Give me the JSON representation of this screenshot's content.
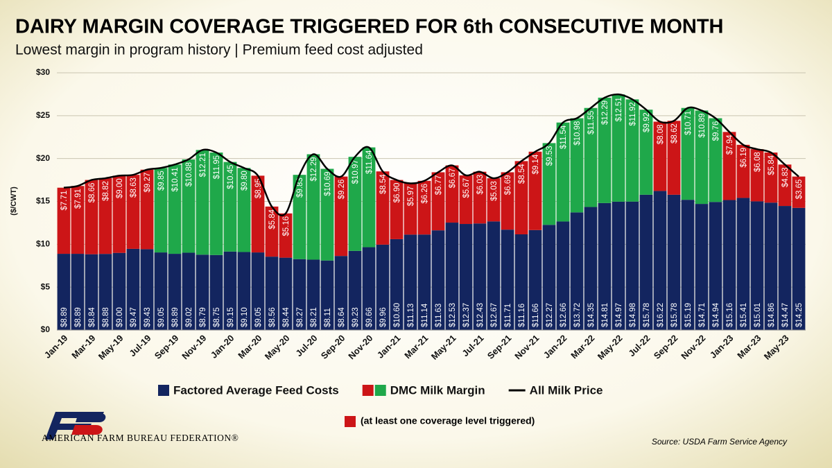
{
  "chart_data": {
    "type": "stacked_bar_line",
    "title": "DAIRY MARGIN COVERAGE TRIGGERED FOR 6th CONSECUTIVE MONTH",
    "subtitle": "Lowest margin in program history | Premium feed cost adjusted",
    "y_label": "($/CWT)",
    "note": "(at least one coverage level triggered)",
    "source": "Source: USDA Farm Service Agency",
    "organization": "AMERICAN FARM BUREAU FEDERATION®",
    "categories": [
      "Jan-19",
      null,
      "Mar-19",
      null,
      "May-19",
      null,
      "Jul-19",
      null,
      "Sep-19",
      null,
      "Nov-19",
      null,
      "Jan-20",
      null,
      "Mar-20",
      null,
      "May-20",
      null,
      "Jul-20",
      null,
      "Sep-20",
      null,
      "Nov-20",
      null,
      "Jan-21",
      null,
      "Mar-21",
      null,
      "May-21",
      null,
      "Jul-21",
      null,
      "Sep-21",
      null,
      "Nov-21",
      null,
      "Jan-22",
      null,
      "Mar-22",
      null,
      "May-22",
      null,
      "Jul-22",
      null,
      "Sep-22",
      null,
      "Nov-22",
      null,
      "Jan-23",
      null,
      "Mar-23",
      null,
      "May-23",
      null
    ],
    "ylim": [
      0,
      30
    ],
    "yticks": [
      {
        "value": 0,
        "label": "$0"
      },
      {
        "value": 5,
        "label": "$5"
      },
      {
        "value": 10,
        "label": "$10"
      },
      {
        "value": 15,
        "label": "$15"
      },
      {
        "value": 20,
        "label": "$20"
      },
      {
        "value": 25,
        "label": "$25"
      },
      {
        "value": 30,
        "label": "$30"
      }
    ],
    "grid": true,
    "series": [
      {
        "name": "Factored Average Feed Costs",
        "kind": "bar",
        "color": "#13255f",
        "values": [
          8.89,
          8.89,
          8.84,
          8.88,
          9.0,
          9.47,
          9.43,
          9.05,
          8.89,
          9.02,
          8.79,
          8.75,
          9.15,
          9.1,
          9.05,
          8.56,
          8.44,
          8.27,
          8.21,
          8.11,
          8.64,
          9.23,
          9.66,
          9.96,
          10.6,
          11.13,
          11.14,
          11.63,
          12.53,
          12.37,
          12.43,
          12.67,
          11.71,
          11.16,
          11.66,
          12.27,
          12.66,
          13.72,
          14.35,
          14.81,
          14.97,
          14.98,
          15.78,
          16.22,
          15.78,
          15.19,
          14.71,
          14.94,
          15.16,
          15.41,
          15.01,
          14.86,
          14.47,
          14.25
        ],
        "value_labels": [
          "$8.89",
          "$8.89",
          "$8.84",
          "$8.88",
          "$9.00",
          "$9.47",
          "$9.43",
          "$9.05",
          "$8.89",
          "$9.02",
          "$8.79",
          "$8.75",
          "$9.15",
          "$9.10",
          "$9.05",
          "$8.56",
          "$8.44",
          "$8.27",
          "$8.21",
          "$8.11",
          "$8.64",
          "$9.23",
          "$9.66",
          "$9.96",
          "$10.60",
          "$11.13",
          "$11.14",
          "$11.63",
          "$12.53",
          "$12.37",
          "$12.43",
          "$12.67",
          "$11.71",
          "$11.16",
          "$11.66",
          "$12.27",
          "$12.66",
          "$13.72",
          "$14.35",
          "$14.81",
          "$14.97",
          "$14.98",
          "$15.78",
          "$16.22",
          "$15.78",
          "$15.19",
          "$14.71",
          "$14.94",
          "$15.16",
          "$15.41",
          "$15.01",
          "$14.86",
          "$14.47",
          "$14.25"
        ]
      },
      {
        "name": "DMC Milk Margin",
        "kind": "bar",
        "color": "#1fa84a",
        "values": [
          7.71,
          7.91,
          8.66,
          8.82,
          9.0,
          8.63,
          9.27,
          9.85,
          10.41,
          10.88,
          12.21,
          11.95,
          10.45,
          9.8,
          8.95,
          5.84,
          5.16,
          9.83,
          12.29,
          10.69,
          9.26,
          10.97,
          11.64,
          8.54,
          6.9,
          5.97,
          6.26,
          6.77,
          6.67,
          5.67,
          6.03,
          5.03,
          6.69,
          8.54,
          9.14,
          9.53,
          11.54,
          10.98,
          11.55,
          12.29,
          12.51,
          11.92,
          9.92,
          8.08,
          8.62,
          10.71,
          10.89,
          9.76,
          7.94,
          6.19,
          6.08,
          5.84,
          4.83,
          3.65
        ],
        "value_labels": [
          "$7.71",
          "$7.91",
          "$8.66",
          "$8.82",
          "$9.00",
          "$8.63",
          "$9.27",
          "$9.85",
          "$10.41",
          "$10.88",
          "$12.21",
          "$11.95",
          "$10.45",
          "$9.80",
          "$8.95",
          "$5.84",
          "$5.16",
          "$9.83",
          "$12.29",
          "$10.69",
          "$9.26",
          "$10.97",
          "$11.64",
          "$8.54",
          "$6.90",
          "$5.97",
          "$6.26",
          "$6.77",
          "$6.67",
          "$5.67",
          "$6.03",
          "$5.03",
          "$6.69",
          "$8.54",
          "$9.14",
          "$9.53",
          "$11.54",
          "$10.98",
          "$11.55",
          "$12.29",
          "$12.51",
          "$11.92",
          "$9.92",
          "$8.08",
          "$8.62",
          "$10.71",
          "$10.89",
          "$9.76",
          "$7.94",
          "$6.19",
          "$6.08",
          "$5.84",
          "$4.83",
          "$3.65"
        ],
        "colors": [
          "#cc1517",
          "#cc1517",
          "#cc1517",
          "#cc1517",
          "#cc1517",
          "#cc1517",
          "#cc1517",
          "#1fa84a",
          "#1fa84a",
          "#1fa84a",
          "#1fa84a",
          "#1fa84a",
          "#1fa84a",
          "#1fa84a",
          "#cc1517",
          "#cc1517",
          "#cc1517",
          "#1fa84a",
          "#1fa84a",
          "#1fa84a",
          "#cc1517",
          "#1fa84a",
          "#1fa84a",
          "#cc1517",
          "#cc1517",
          "#cc1517",
          "#cc1517",
          "#cc1517",
          "#cc1517",
          "#cc1517",
          "#cc1517",
          "#cc1517",
          "#cc1517",
          "#cc1517",
          "#cc1517",
          "#1fa84a",
          "#1fa84a",
          "#1fa84a",
          "#1fa84a",
          "#1fa84a",
          "#1fa84a",
          "#1fa84a",
          "#1fa84a",
          "#cc1517",
          "#cc1517",
          "#1fa84a",
          "#1fa84a",
          "#1fa84a",
          "#cc1517",
          "#cc1517",
          "#cc1517",
          "#cc1517",
          "#cc1517",
          "#cc1517"
        ]
      },
      {
        "name": "All Milk Price",
        "kind": "line",
        "color": "#000000",
        "values": [
          16.6,
          16.8,
          17.5,
          17.7,
          18.0,
          18.1,
          18.7,
          18.9,
          19.3,
          19.9,
          21.0,
          20.7,
          19.6,
          18.9,
          18.0,
          14.4,
          13.6,
          18.1,
          20.5,
          18.8,
          17.9,
          20.2,
          21.3,
          18.5,
          17.5,
          17.1,
          17.4,
          18.4,
          19.2,
          18.04,
          18.46,
          17.7,
          18.4,
          19.7,
          20.8,
          21.8,
          24.2,
          24.7,
          25.9,
          27.1,
          27.48,
          26.9,
          25.7,
          24.3,
          24.4,
          25.9,
          25.6,
          24.7,
          23.1,
          21.6,
          21.09,
          20.7,
          19.3,
          17.9
        ]
      }
    ]
  }
}
